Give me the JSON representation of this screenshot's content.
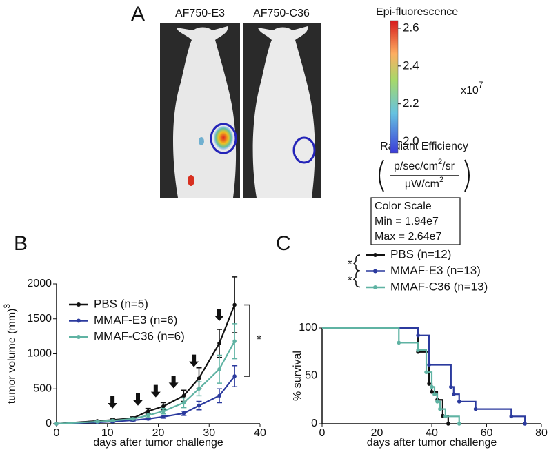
{
  "panel_a": {
    "label": "A",
    "images": [
      "AF750-E3",
      "AF750-C36"
    ],
    "colorbar": {
      "title": "Epi-fluorescence",
      "lim": [
        1.94,
        2.64
      ],
      "ticks": [
        {
          "value": 2.0,
          "label": "2.0"
        },
        2.2,
        2.4,
        2.6
      ],
      "multiplier": "x10",
      "exponent": "7"
    },
    "units": {
      "title": "Radiant Efficiency",
      "numerator": [
        "p/sec/cm",
        "2",
        "/sr"
      ],
      "denominator": [
        "μW/cm",
        "2"
      ]
    },
    "scale_box": [
      "Color Scale",
      "Min = 1.94e7",
      "Max = 2.64e7"
    ]
  },
  "chart_data": [
    {
      "type": "line",
      "panel": "B",
      "x_label": "days after tumor challenge",
      "y_label": "tumor volume (mm)",
      "y_label_sup": "3",
      "x": [
        0,
        8,
        11,
        15,
        18,
        21,
        25,
        28,
        32,
        35
      ],
      "xlim": [
        0,
        40
      ],
      "xticks": [
        0,
        10,
        20,
        30,
        40
      ],
      "ylim": [
        0,
        2000
      ],
      "yticks": [
        0,
        500,
        1000,
        1500,
        2000
      ],
      "series": [
        {
          "name": "PBS (n=5)",
          "color": "#111111",
          "values": [
            0,
            40,
            55,
            80,
            180,
            250,
            400,
            650,
            1150,
            1700
          ],
          "errors": [
            0,
            10,
            15,
            20,
            40,
            50,
            80,
            150,
            200,
            400
          ]
        },
        {
          "name": "MMAF-E3 (n=6)",
          "color": "#2b3a9e",
          "values": [
            0,
            20,
            30,
            50,
            70,
            100,
            150,
            260,
            400,
            680
          ],
          "errors": [
            0,
            5,
            10,
            10,
            15,
            20,
            30,
            60,
            100,
            150
          ]
        },
        {
          "name": "MMAF-C36 (n=6)",
          "color": "#5fb3a3",
          "values": [
            0,
            30,
            45,
            70,
            120,
            180,
            300,
            500,
            780,
            1180
          ],
          "errors": [
            0,
            8,
            12,
            15,
            30,
            40,
            70,
            100,
            200,
            250
          ]
        }
      ],
      "treatment_days": [
        11,
        16,
        19.5,
        23,
        27,
        32
      ],
      "significance": "*"
    },
    {
      "type": "step",
      "panel": "C",
      "x_label": "days after tumor challenge",
      "y_label": "% survival",
      "xlim": [
        0,
        80
      ],
      "xticks": [
        0,
        20,
        40,
        60,
        80
      ],
      "ylim": [
        0,
        100
      ],
      "yticks": [
        0,
        50,
        100
      ],
      "series": [
        {
          "name": "PBS (n=12)",
          "color": "#111111",
          "x": [
            0,
            35,
            39,
            40,
            42,
            44,
            46
          ],
          "values": [
            100,
            75,
            41.7,
            33.3,
            25,
            8.3,
            0
          ]
        },
        {
          "name": "MMAF-E3 (n=13)",
          "color": "#2b3a9e",
          "x": [
            0,
            35,
            39,
            47,
            48,
            50,
            56,
            69,
            74
          ],
          "values": [
            100,
            92.3,
            61.5,
            38.5,
            30.8,
            23.1,
            15.4,
            7.7,
            0
          ]
        },
        {
          "name": "MMAF-C36 (n=13)",
          "color": "#5fb3a3",
          "x": [
            0,
            28,
            35,
            38,
            40,
            41,
            42,
            43,
            45,
            50
          ],
          "values": [
            100,
            84.6,
            76.9,
            53.8,
            38.5,
            30.8,
            23.1,
            15.4,
            7.7,
            0
          ]
        }
      ],
      "significance": [
        "*",
        "*"
      ]
    }
  ]
}
